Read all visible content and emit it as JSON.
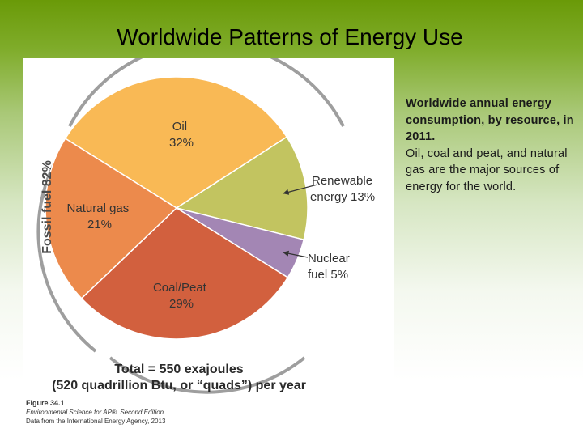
{
  "slide": {
    "title": "Worldwide Patterns of Energy Use",
    "caption_bold": "Worldwide annual energy consumption, by resource, in 2011.",
    "caption_body": "Oil, coal and peat, and natural gas are the major sources of energy for the world."
  },
  "chart_data": {
    "type": "pie",
    "title": "",
    "slices": [
      {
        "name": "Oil",
        "label": "32%",
        "value": 32,
        "color": "#f9b955"
      },
      {
        "name": "Renewable energy",
        "label": "13%",
        "value": 13,
        "color": "#c2c460"
      },
      {
        "name": "Nuclear fuel",
        "label": "5%",
        "value": 5,
        "color": "#a386b4"
      },
      {
        "name": "Coal/Peat",
        "label": "29%",
        "value": 29,
        "color": "#d2603e"
      },
      {
        "name": "Natural gas",
        "label": "21%",
        "value": 21,
        "color": "#ec8a4c"
      }
    ],
    "group_label": "Fossil fuel 82%",
    "total_line1": "Total = 550 exajoules",
    "total_line2": "(520 quadrillion Btu, or “quads”) per year",
    "credit": {
      "figure": "Figure 34.1",
      "book": "Environmental Science for AP®, Second Edition",
      "source": "Data from the International Energy Agency, 2013"
    }
  }
}
